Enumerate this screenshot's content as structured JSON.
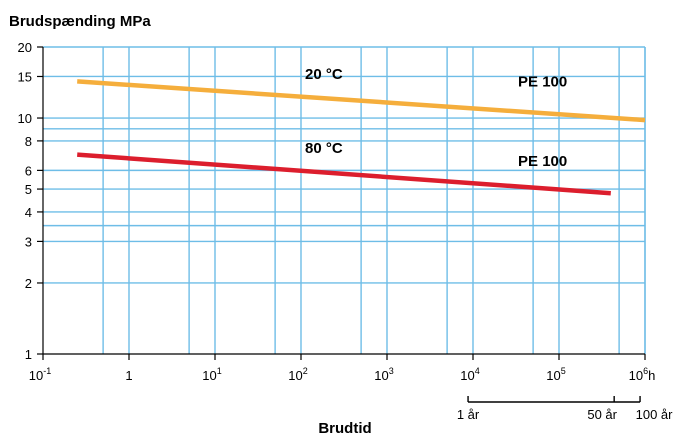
{
  "chart_data": {
    "type": "line",
    "title": "Brudspænding MPa",
    "xlabel": "Brudtid",
    "x_scale": "log",
    "y_scale": "log",
    "xlim": [
      0.1,
      1000000
    ],
    "ylim": [
      1,
      20
    ],
    "grid": true,
    "x_ticks": [
      {
        "base": "10",
        "sup": "-1"
      },
      {
        "base": "1",
        "sup": ""
      },
      {
        "base": "10",
        "sup": "1"
      },
      {
        "base": "10",
        "sup": "2"
      },
      {
        "base": "10",
        "sup": "3"
      },
      {
        "base": "10",
        "sup": "4"
      },
      {
        "base": "10",
        "sup": "5"
      },
      {
        "base": "10",
        "sup": "6"
      }
    ],
    "x_unit": "h",
    "y_ticks": [
      "1",
      "2",
      "3",
      "4",
      "5",
      "6",
      "8",
      "10",
      "15",
      "20"
    ],
    "series": [
      {
        "x": [
          0.25,
          1000000
        ],
        "y": [
          14.3,
          9.8
        ],
        "color": "#f5ae3c"
      },
      {
        "x": [
          0.25,
          400000
        ],
        "y": [
          7.0,
          4.8
        ],
        "color": "#dc1e2d"
      }
    ],
    "annotations": [
      {
        "text": "20 °C",
        "x": 100,
        "y": 13.8
      },
      {
        "text": "PE 100",
        "x": 30000,
        "y": 12.8
      },
      {
        "text": "80 °C",
        "x": 100,
        "y": 6.7
      },
      {
        "text": "PE 100",
        "x": 30000,
        "y": 5.9
      }
    ],
    "year_scale": {
      "labels": [
        "1 år",
        "50 år",
        "100 år"
      ],
      "hours": [
        8760,
        438000,
        876000
      ]
    },
    "colors": {
      "grid": "#6ebde7",
      "axis": "#000000"
    }
  }
}
